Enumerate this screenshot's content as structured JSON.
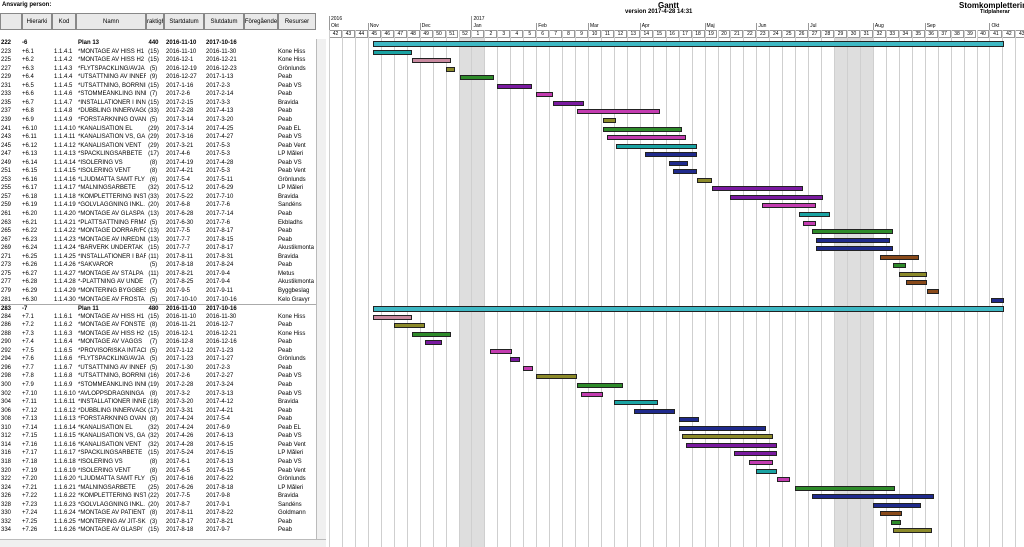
{
  "header": {
    "ansvarig": "Ansvarig person:",
    "gantt_title": "Gantt",
    "version": "version 2017-4-28 14:31",
    "project": "Stomkomplettering",
    "tidplan": "Tidplanerar"
  },
  "columns": [
    "",
    "Hierarki",
    "Kod",
    "Namn",
    "Varaktighet",
    "Startdatum",
    "Slutdatum",
    "Föregående",
    "Resurser"
  ],
  "rows": [
    {
      "rad": "222",
      "hier": "-6",
      "kod": "",
      "namn": "Plan 13",
      "ant": "440",
      "start": "2016-11-10",
      "slut": "2017-10-16",
      "res": "",
      "group": true
    },
    {
      "rad": "223",
      "hier": "+6.1",
      "kod": "1.1.4.1",
      "namn": "*MONTAGE AV HISS H1",
      "ant": "(15)",
      "start": "2016-11-10",
      "slut": "2016-11-30",
      "res": "Kone Hiss"
    },
    {
      "rad": "225",
      "hier": "+6.2",
      "kod": "1.1.4.2",
      "namn": "*MONTAGE AV HISS H2",
      "ant": "(15)",
      "start": "2016-12-1",
      "slut": "2016-12-21",
      "res": "Kone Hiss"
    },
    {
      "rad": "227",
      "hier": "+6.3",
      "kod": "1.1.4.3",
      "namn": "*FLYTSPACKLING/AVJÄ",
      "ant": "(5)",
      "start": "2016-12-19",
      "slut": "2016-12-23",
      "res": "Grönlunds"
    },
    {
      "rad": "229",
      "hier": "+6.4",
      "kod": "1.1.4.4",
      "namn": "*UTSÄTTNING AV INNER",
      "ant": "(9)",
      "start": "2016-12-27",
      "slut": "2017-1-13",
      "res": "Peab"
    },
    {
      "rad": "231",
      "hier": "+6.5",
      "kod": "1.1.4.5",
      "namn": "*UTSÄTTNING, BORRNIN",
      "ant": "(15)",
      "start": "2017-1-16",
      "slut": "2017-2-3",
      "res": "Peab VS"
    },
    {
      "rad": "233",
      "hier": "+6.6",
      "kod": "1.1.4.6",
      "namn": "*STOMMEÅNKLING INNE",
      "ant": "(7)",
      "start": "2017-2-6",
      "slut": "2017-2-14",
      "res": "Peab"
    },
    {
      "rad": "235",
      "hier": "+6.7",
      "kod": "1.1.4.7",
      "namn": "*INSTALLATIONER I INN",
      "ant": "(15)",
      "start": "2017-2-15",
      "slut": "2017-3-3",
      "res": "Bravida"
    },
    {
      "rad": "237",
      "hier": "+6.8",
      "kod": "1.1.4.8",
      "namn": "*DUBBLING INNERVÄGG",
      "ant": "(33)",
      "start": "2017-2-28",
      "slut": "2017-4-13",
      "res": "Peab"
    },
    {
      "rad": "239",
      "hier": "+6.9",
      "kod": "1.1.4.9",
      "namn": "*FÖRSTÄRKNING OVAN",
      "ant": "(5)",
      "start": "2017-3-14",
      "slut": "2017-3-20",
      "res": "Peab"
    },
    {
      "rad": "241",
      "hier": "+6.10",
      "kod": "1.1.4.10",
      "namn": "*KANALISATION EL",
      "ant": "(29)",
      "start": "2017-3-14",
      "slut": "2017-4-25",
      "res": "Peab EL"
    },
    {
      "rad": "243",
      "hier": "+6.11",
      "kod": "1.1.4.11",
      "namn": "*KANALISATION VS, GA",
      "ant": "(29)",
      "start": "2017-3-16",
      "slut": "2017-4-27",
      "res": "Peab VS"
    },
    {
      "rad": "245",
      "hier": "+6.12",
      "kod": "1.1.4.12",
      "namn": "*KANALISATION VENT",
      "ant": "(29)",
      "start": "2017-3-21",
      "slut": "2017-5-3",
      "res": "Peab Vent"
    },
    {
      "rad": "247",
      "hier": "+6.13",
      "kod": "1.1.4.13",
      "namn": "*SPACKLINGSARBETE",
      "ant": "(17)",
      "start": "2017-4-6",
      "slut": "2017-5-3",
      "res": "LP Måleri"
    },
    {
      "rad": "249",
      "hier": "+6.14",
      "kod": "1.1.4.14",
      "namn": "*ISOLERING VS",
      "ant": "(8)",
      "start": "2017-4-19",
      "slut": "2017-4-28",
      "res": "Peab VS"
    },
    {
      "rad": "251",
      "hier": "+6.15",
      "kod": "1.1.4.15",
      "namn": "*ISOLERING VENT",
      "ant": "(8)",
      "start": "2017-4-21",
      "slut": "2017-5-3",
      "res": "Peab Vent"
    },
    {
      "rad": "253",
      "hier": "+6.16",
      "kod": "1.1.4.16",
      "namn": "*LJUDMATTA SAMT FLY",
      "ant": "(6)",
      "start": "2017-5-4",
      "slut": "2017-5-11",
      "res": "Grönlunds"
    },
    {
      "rad": "255",
      "hier": "+6.17",
      "kod": "1.1.4.17",
      "namn": "*MÅLNINGSARBETE",
      "ant": "(32)",
      "start": "2017-5-12",
      "slut": "2017-6-29",
      "res": "LP Måleri"
    },
    {
      "rad": "257",
      "hier": "+6.18",
      "kod": "1.1.4.18",
      "namn": "*KOMPLETTERING INSTA",
      "ant": "(33)",
      "start": "2017-5-22",
      "slut": "2017-7-10",
      "res": "Bravida"
    },
    {
      "rad": "259",
      "hier": "+6.19",
      "kod": "1.1.4.19",
      "namn": "*GOLVLÄGGNING INKL.",
      "ant": "(20)",
      "start": "2017-6-8",
      "slut": "2017-7-6",
      "res": "Sandéns"
    },
    {
      "rad": "261",
      "hier": "+6.20",
      "kod": "1.1.4.20",
      "namn": "*MONTAGE AV GLASPA",
      "ant": "(13)",
      "start": "2017-6-28",
      "slut": "2017-7-14",
      "res": "Peab"
    },
    {
      "rad": "263",
      "hier": "+6.21",
      "kod": "1.1.4.21",
      "namn": "*PLATTSÄTTNING FRMÅ",
      "ant": "(5)",
      "start": "2017-6-30",
      "slut": "2017-7-6",
      "res": "Ekbladhs"
    },
    {
      "rad": "265",
      "hier": "+6.22",
      "kod": "1.1.4.22",
      "namn": "*MONTAGE DÖRRAR/FÖ",
      "ant": "(13)",
      "start": "2017-7-5",
      "slut": "2017-8-17",
      "res": "Peab"
    },
    {
      "rad": "267",
      "hier": "+6.23",
      "kod": "1.1.4.23",
      "namn": "*MONTAGE AV INREDNI",
      "ant": "(13)",
      "start": "2017-7-7",
      "slut": "2017-8-15",
      "res": "Peab"
    },
    {
      "rad": "269",
      "hier": "+6.24",
      "kod": "1.1.4.24",
      "namn": "*BÄRVERK UNDERTAK",
      "ant": "(15)",
      "start": "2017-7-7",
      "slut": "2017-8-17",
      "res": "Akustikmonta"
    },
    {
      "rad": "271",
      "hier": "+6.25",
      "kod": "1.1.4.25",
      "namn": "*INSTALLATIONER I BÄF",
      "ant": "(11)",
      "start": "2017-8-11",
      "slut": "2017-8-31",
      "res": "Bravida"
    },
    {
      "rad": "273",
      "hier": "+6.26",
      "kod": "1.1.4.26",
      "namn": "*SAKVAROR",
      "ant": "(5)",
      "start": "2017-8-18",
      "slut": "2017-8-24",
      "res": "Peab"
    },
    {
      "rad": "275",
      "hier": "+6.27",
      "kod": "1.1.4.27",
      "namn": "*MONTAGE AV STÅLPA",
      "ant": "(11)",
      "start": "2017-8-21",
      "slut": "2017-9-4",
      "res": "Metus"
    },
    {
      "rad": "277",
      "hier": "+6.28",
      "kod": "1.1.4.28",
      "namn": "*-PLATTNING AV UNDE",
      "ant": "(7)",
      "start": "2017-8-25",
      "slut": "2017-9-4",
      "res": "Akustikmonta"
    },
    {
      "rad": "279",
      "hier": "+6.29",
      "kod": "1.1.4.29",
      "namn": "*MONTERING BYGGBES",
      "ant": "(5)",
      "start": "2017-9-5",
      "slut": "2017-9-11",
      "res": "Byggbeslag"
    },
    {
      "rad": "281",
      "hier": "+6.30",
      "kod": "1.1.4.30",
      "namn": "*MONTAGE AV FROSTA",
      "ant": "(5)",
      "start": "2017-10-10",
      "slut": "2017-10-16",
      "res": "Kelo Gravyr"
    },
    {
      "rad": "283",
      "hier": "-7",
      "kod": "",
      "namn": "Plan 11",
      "ant": "480",
      "start": "2016-11-10",
      "slut": "2017-10-16",
      "res": "",
      "group": true
    },
    {
      "rad": "284",
      "hier": "+7.1",
      "kod": "1.1.6.1",
      "namn": "*MONTAGE AV HISS H1",
      "ant": "(15)",
      "start": "2016-11-10",
      "slut": "2016-11-30",
      "res": "Kone Hiss"
    },
    {
      "rad": "286",
      "hier": "+7.2",
      "kod": "1.1.6.2",
      "namn": "*MONTAGE AV FÖNSTE",
      "ant": "(8)",
      "start": "2016-11-21",
      "slut": "2016-12-7",
      "res": "Peab"
    },
    {
      "rad": "288",
      "hier": "+7.3",
      "kod": "1.1.6.3",
      "namn": "*MONTAGE AV HISS H2",
      "ant": "(15)",
      "start": "2016-12-1",
      "slut": "2016-12-21",
      "res": "Kone Hiss"
    },
    {
      "rad": "290",
      "hier": "+7.4",
      "kod": "1.1.6.4",
      "namn": "*MONTAGE AV VÄGGS",
      "ant": "(7)",
      "start": "2016-12-8",
      "slut": "2016-12-16",
      "res": "Peab"
    },
    {
      "rad": "292",
      "hier": "+7.5",
      "kod": "1.1.6.5",
      "namn": "*PROVISORISKA INTÄCK",
      "ant": "(5)",
      "start": "2017-1-12",
      "slut": "2017-1-23",
      "res": "Peab"
    },
    {
      "rad": "294",
      "hier": "+7.6",
      "kod": "1.1.6.6",
      "namn": "*FLYTSPACKLING/AVJÄ",
      "ant": "(5)",
      "start": "2017-1-23",
      "slut": "2017-1-27",
      "res": "Grönlunds"
    },
    {
      "rad": "296",
      "hier": "+7.7",
      "kod": "1.1.6.7",
      "namn": "*UTSÄTTNING AV INNER",
      "ant": "(5)",
      "start": "2017-1-30",
      "slut": "2017-2-3",
      "res": "Peab"
    },
    {
      "rad": "298",
      "hier": "+7.8",
      "kod": "1.1.6.8",
      "namn": "*UTSÄTTNING, BORRNIN",
      "ant": "(16)",
      "start": "2017-2-6",
      "slut": "2017-2-27",
      "res": "Peab VS"
    },
    {
      "rad": "300",
      "hier": "+7.9",
      "kod": "1.1.6.9",
      "namn": "*STOMMEÅNKLING INNE",
      "ant": "(19)",
      "start": "2017-2-28",
      "slut": "2017-3-24",
      "res": "Peab"
    },
    {
      "rad": "302",
      "hier": "+7.10",
      "kod": "1.1.6.10",
      "namn": "*AVLOPPSDRAGNINGA",
      "ant": "(8)",
      "start": "2017-3-2",
      "slut": "2017-3-13",
      "res": "Peab VS"
    },
    {
      "rad": "304",
      "hier": "+7.11",
      "kod": "1.1.6.11",
      "namn": "*INSTALLATIONER INNE",
      "ant": "(18)",
      "start": "2017-3-20",
      "slut": "2017-4-12",
      "res": "Bravida"
    },
    {
      "rad": "306",
      "hier": "+7.12",
      "kod": "1.1.6.12",
      "namn": "*DUBBLING INNERVÄGG",
      "ant": "(17)",
      "start": "2017-3-31",
      "slut": "2017-4-21",
      "res": "Peab"
    },
    {
      "rad": "308",
      "hier": "+7.13",
      "kod": "1.1.6.13",
      "namn": "*FÖRSTÄRKNING OVAN",
      "ant": "(8)",
      "start": "2017-4-24",
      "slut": "2017-5-4",
      "res": "Peab"
    },
    {
      "rad": "310",
      "hier": "+7.14",
      "kod": "1.1.6.14",
      "namn": "*KANALISATION EL",
      "ant": "(32)",
      "start": "2017-4-24",
      "slut": "2017-6-9",
      "res": "Peab EL"
    },
    {
      "rad": "312",
      "hier": "+7.15",
      "kod": "1.1.6.15",
      "namn": "*KANALISATION VS, GA",
      "ant": "(32)",
      "start": "2017-4-26",
      "slut": "2017-6-13",
      "res": "Peab VS"
    },
    {
      "rad": "314",
      "hier": "+7.16",
      "kod": "1.1.6.16",
      "namn": "*KANALISATION VENT",
      "ant": "(32)",
      "start": "2017-4-28",
      "slut": "2017-6-15",
      "res": "Peab Vent"
    },
    {
      "rad": "316",
      "hier": "+7.17",
      "kod": "1.1.6.17",
      "namn": "*SPACKLINGSARBETE",
      "ant": "(15)",
      "start": "2017-5-24",
      "slut": "2017-6-15",
      "res": "LP Måleri"
    },
    {
      "rad": "318",
      "hier": "+7.18",
      "kod": "1.1.6.18",
      "namn": "*ISOLERING VS",
      "ant": "(8)",
      "start": "2017-6-1",
      "slut": "2017-6-13",
      "res": "Peab VS"
    },
    {
      "rad": "320",
      "hier": "+7.19",
      "kod": "1.1.6.19",
      "namn": "*ISOLERING VENT",
      "ant": "(8)",
      "start": "2017-6-5",
      "slut": "2017-6-15",
      "res": "Peab Vent"
    },
    {
      "rad": "322",
      "hier": "+7.20",
      "kod": "1.1.6.20",
      "namn": "*LJUDMATTA SAMT FLY",
      "ant": "(5)",
      "start": "2017-6-16",
      "slut": "2017-6-22",
      "res": "Grönlunds"
    },
    {
      "rad": "324",
      "hier": "+7.21",
      "kod": "1.1.6.21",
      "namn": "*MÅLNINGSARBETE",
      "ant": "(25)",
      "start": "2017-6-26",
      "slut": "2017-8-18",
      "res": "LP Måleri"
    },
    {
      "rad": "326",
      "hier": "+7.22",
      "kod": "1.1.6.22",
      "namn": "*KOMPLETTERING INSTA",
      "ant": "(22)",
      "start": "2017-7-5",
      "slut": "2017-9-8",
      "res": "Bravida"
    },
    {
      "rad": "328",
      "hier": "+7.23",
      "kod": "1.1.6.23",
      "namn": "*GOLVLÄGGNING INKL.",
      "ant": "(20)",
      "start": "2017-8-7",
      "slut": "2017-9-1",
      "res": "Sandéns"
    },
    {
      "rad": "330",
      "hier": "+7.24",
      "kod": "1.1.6.24",
      "namn": "*MONTAGE AV PATIENT",
      "ant": "(8)",
      "start": "2017-8-11",
      "slut": "2017-8-22",
      "res": "Goldmann"
    },
    {
      "rad": "332",
      "hier": "+7.25",
      "kod": "1.1.6.25",
      "namn": "*MONTERING AV JIT-SK",
      "ant": "(3)",
      "start": "2017-8-17",
      "slut": "2017-8-21",
      "res": "Peab"
    },
    {
      "rad": "334",
      "hier": "+7.26",
      "kod": "1.1.6.26",
      "namn": "*MONTAGE AV GLASP/",
      "ant": "(15)",
      "start": "2017-8-18",
      "slut": "2017-9-7",
      "res": "Peab"
    }
  ],
  "timeline": {
    "years": [
      "2016",
      "2017"
    ],
    "months": [
      "Okt",
      "Nov",
      "Dec",
      "Jan",
      "Feb",
      "Mar",
      "Apr",
      "Maj",
      "Jun",
      "Jul",
      "Aug",
      "Sep",
      "Okt"
    ],
    "weeks": [
      "42",
      "43",
      "44",
      "45",
      "46",
      "47",
      "48",
      "49",
      "50",
      "51",
      "52",
      "1",
      "2",
      "3",
      "4",
      "5",
      "6",
      "7",
      "8",
      "9",
      "10",
      "11",
      "12",
      "13",
      "14",
      "15",
      "16",
      "17",
      "18",
      "19",
      "20",
      "21",
      "22",
      "23",
      "24",
      "25",
      "26",
      "27",
      "28",
      "29",
      "30",
      "31",
      "32",
      "33",
      "34",
      "35",
      "36",
      "37",
      "38",
      "39",
      "40",
      "41",
      "42",
      "43"
    ]
  },
  "colors": {
    "summary": "#3fb8c4",
    "purple": "#7a1aa0",
    "magenta": "#c33cb0",
    "olive": "#8c8a2a",
    "green": "#2e8b2a",
    "teal": "#1aa3a3",
    "navy": "#1f2a8c",
    "brown": "#8a4a1a",
    "pink": "#c98aa0"
  }
}
